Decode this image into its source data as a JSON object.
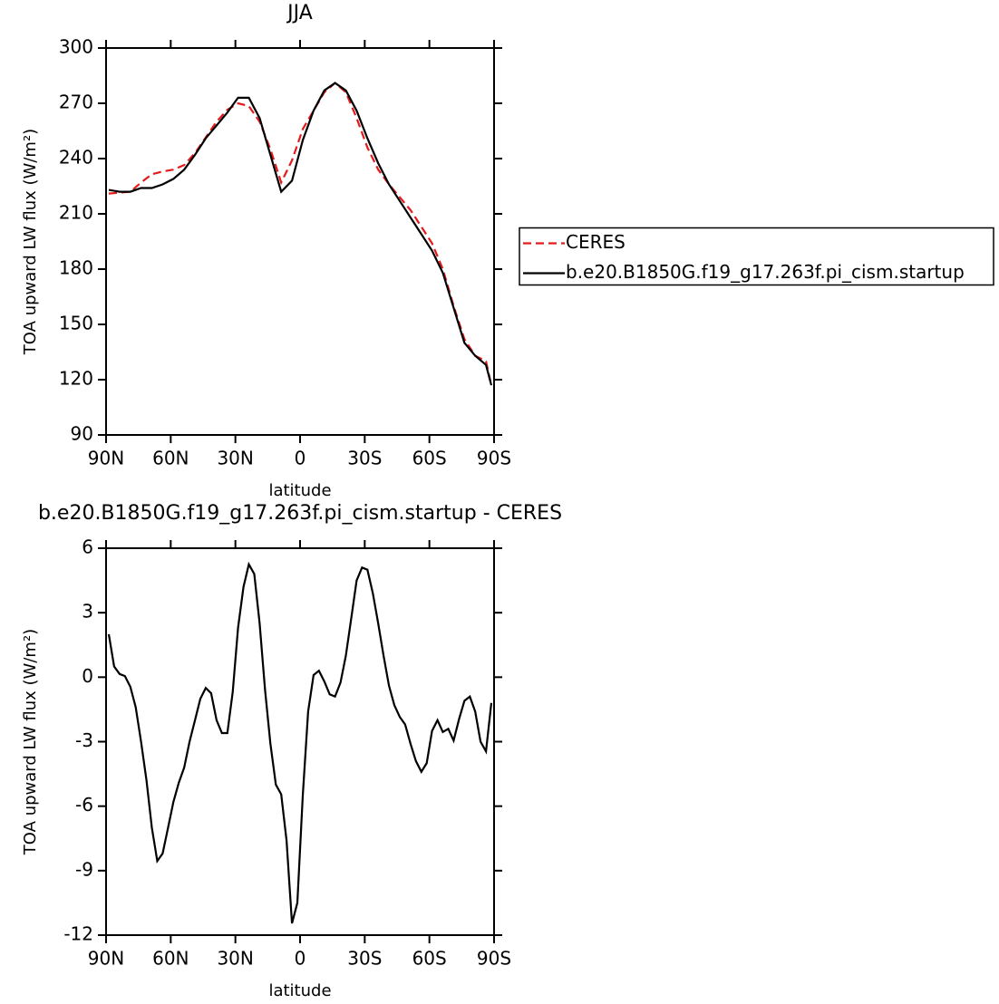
{
  "chart_data": [
    {
      "type": "line",
      "title": "JJA",
      "xlabel": "latitude",
      "ylabel": "TOA upward LW flux (W/m²)",
      "x": [
        88.75,
        83.75,
        78.75,
        73.75,
        68.75,
        63.75,
        58.75,
        53.75,
        48.75,
        43.75,
        38.75,
        33.75,
        28.75,
        23.75,
        18.75,
        13.75,
        8.75,
        3.75,
        -1.25,
        -6.25,
        -11.25,
        -16.25,
        -21.25,
        -26.25,
        -31.25,
        -36.25,
        -41.25,
        -46.25,
        -51.25,
        -56.25,
        -61.25,
        -66.25,
        -71.25,
        -76.25,
        -81.25,
        -86.25,
        -88.75
      ],
      "series": [
        {
          "name": "CERES",
          "color": "#e41a1c",
          "linestyle": "dashed",
          "values": [
            221,
            221.5,
            222,
            227,
            231.5,
            233,
            234,
            236.5,
            243,
            251.5,
            260,
            266.5,
            270,
            268.5,
            260,
            245,
            227,
            239,
            256,
            266,
            276,
            281,
            276,
            262,
            246,
            234,
            226,
            219,
            212,
            203,
            194,
            180,
            160,
            142,
            133,
            130,
            117
          ]
        },
        {
          "name": "b.e20.B1850G.f19_g17.263f.pi_cism.startup",
          "color": "#000000",
          "linestyle": "solid",
          "values": [
            223,
            222,
            222,
            224,
            224,
            226,
            229,
            234,
            242,
            251,
            258,
            265,
            273,
            273,
            262,
            242,
            222,
            228,
            250,
            266,
            277,
            281,
            277,
            266,
            251,
            237.5,
            226,
            217,
            208,
            199,
            190,
            178,
            159,
            140,
            133,
            128,
            117
          ]
        }
      ],
      "xlim": [
        90,
        -90
      ],
      "xticks": [
        {
          "value": 90,
          "label": "90N"
        },
        {
          "value": 60,
          "label": "60N"
        },
        {
          "value": 30,
          "label": "30N"
        },
        0,
        {
          "value": -30,
          "label": "30S"
        },
        {
          "value": -60,
          "label": "60S"
        },
        {
          "value": -90,
          "label": "90S"
        }
      ],
      "ylim": [
        90,
        300
      ],
      "yticks": [
        90,
        120,
        150,
        180,
        210,
        240,
        270,
        300
      ],
      "legend": "right"
    },
    {
      "type": "line",
      "title": "b.e20.B1850G.f19_g17.263f.pi_cism.startup - CERES",
      "xlabel": "latitude",
      "ylabel": "TOA upward LW flux (W/m²)",
      "x": [
        88.75,
        86.25,
        83.75,
        81.25,
        78.75,
        76.25,
        73.75,
        71.25,
        68.75,
        66.25,
        63.75,
        61.25,
        58.75,
        56.25,
        53.75,
        51.25,
        48.75,
        46.25,
        43.75,
        41.25,
        38.75,
        36.25,
        33.75,
        31.25,
        28.75,
        26.25,
        23.75,
        21.25,
        18.75,
        16.25,
        13.75,
        11.25,
        8.75,
        6.25,
        3.75,
        1.25,
        -1.25,
        -3.75,
        -6.25,
        -8.75,
        -11.25,
        -13.75,
        -16.25,
        -18.75,
        -21.25,
        -23.75,
        -26.25,
        -28.75,
        -31.25,
        -33.75,
        -36.25,
        -38.75,
        -41.25,
        -43.75,
        -46.25,
        -48.75,
        -51.25,
        -53.75,
        -56.25,
        -58.75,
        -61.25,
        -63.75,
        -66.25,
        -68.75,
        -71.25,
        -73.75,
        -76.25,
        -78.75,
        -81.25,
        -83.75,
        -86.25,
        -88.75
      ],
      "series": [
        {
          "color": "#000000",
          "linestyle": "solid",
          "values": [
            2.0,
            0.5,
            0.15,
            0.05,
            -0.45,
            -1.4,
            -3.0,
            -4.8,
            -7.0,
            -8.55,
            -8.2,
            -7.0,
            -5.8,
            -4.9,
            -4.2,
            -3.0,
            -2.0,
            -1.0,
            -0.5,
            -0.75,
            -2.0,
            -2.6,
            -2.6,
            -0.7,
            2.3,
            4.2,
            5.25,
            4.8,
            2.5,
            -0.6,
            -3.1,
            -5.0,
            -5.45,
            -7.6,
            -11.45,
            -10.5,
            -5.5,
            -1.6,
            0.1,
            0.3,
            -0.2,
            -0.8,
            -0.9,
            -0.25,
            1.0,
            2.75,
            4.5,
            5.1,
            5.0,
            3.9,
            2.5,
            1.0,
            -0.4,
            -1.3,
            -1.85,
            -2.2,
            -3.1,
            -3.9,
            -4.4,
            -4.0,
            -2.5,
            -2.0,
            -2.55,
            -2.4,
            -2.95,
            -1.95,
            -1.1,
            -0.9,
            -1.6,
            -3.0,
            -3.45,
            -1.2
          ]
        }
      ],
      "xlim": [
        90,
        -90
      ],
      "xticks": [
        {
          "value": 90,
          "label": "90N"
        },
        {
          "value": 60,
          "label": "60N"
        },
        {
          "value": 30,
          "label": "30N"
        },
        0,
        {
          "value": -30,
          "label": "30S"
        },
        {
          "value": -60,
          "label": "60S"
        },
        {
          "value": -90,
          "label": "90S"
        }
      ],
      "ylim": [
        -12,
        6
      ],
      "yticks": [
        -12,
        -9,
        -6,
        -3,
        0,
        3,
        6
      ]
    }
  ]
}
